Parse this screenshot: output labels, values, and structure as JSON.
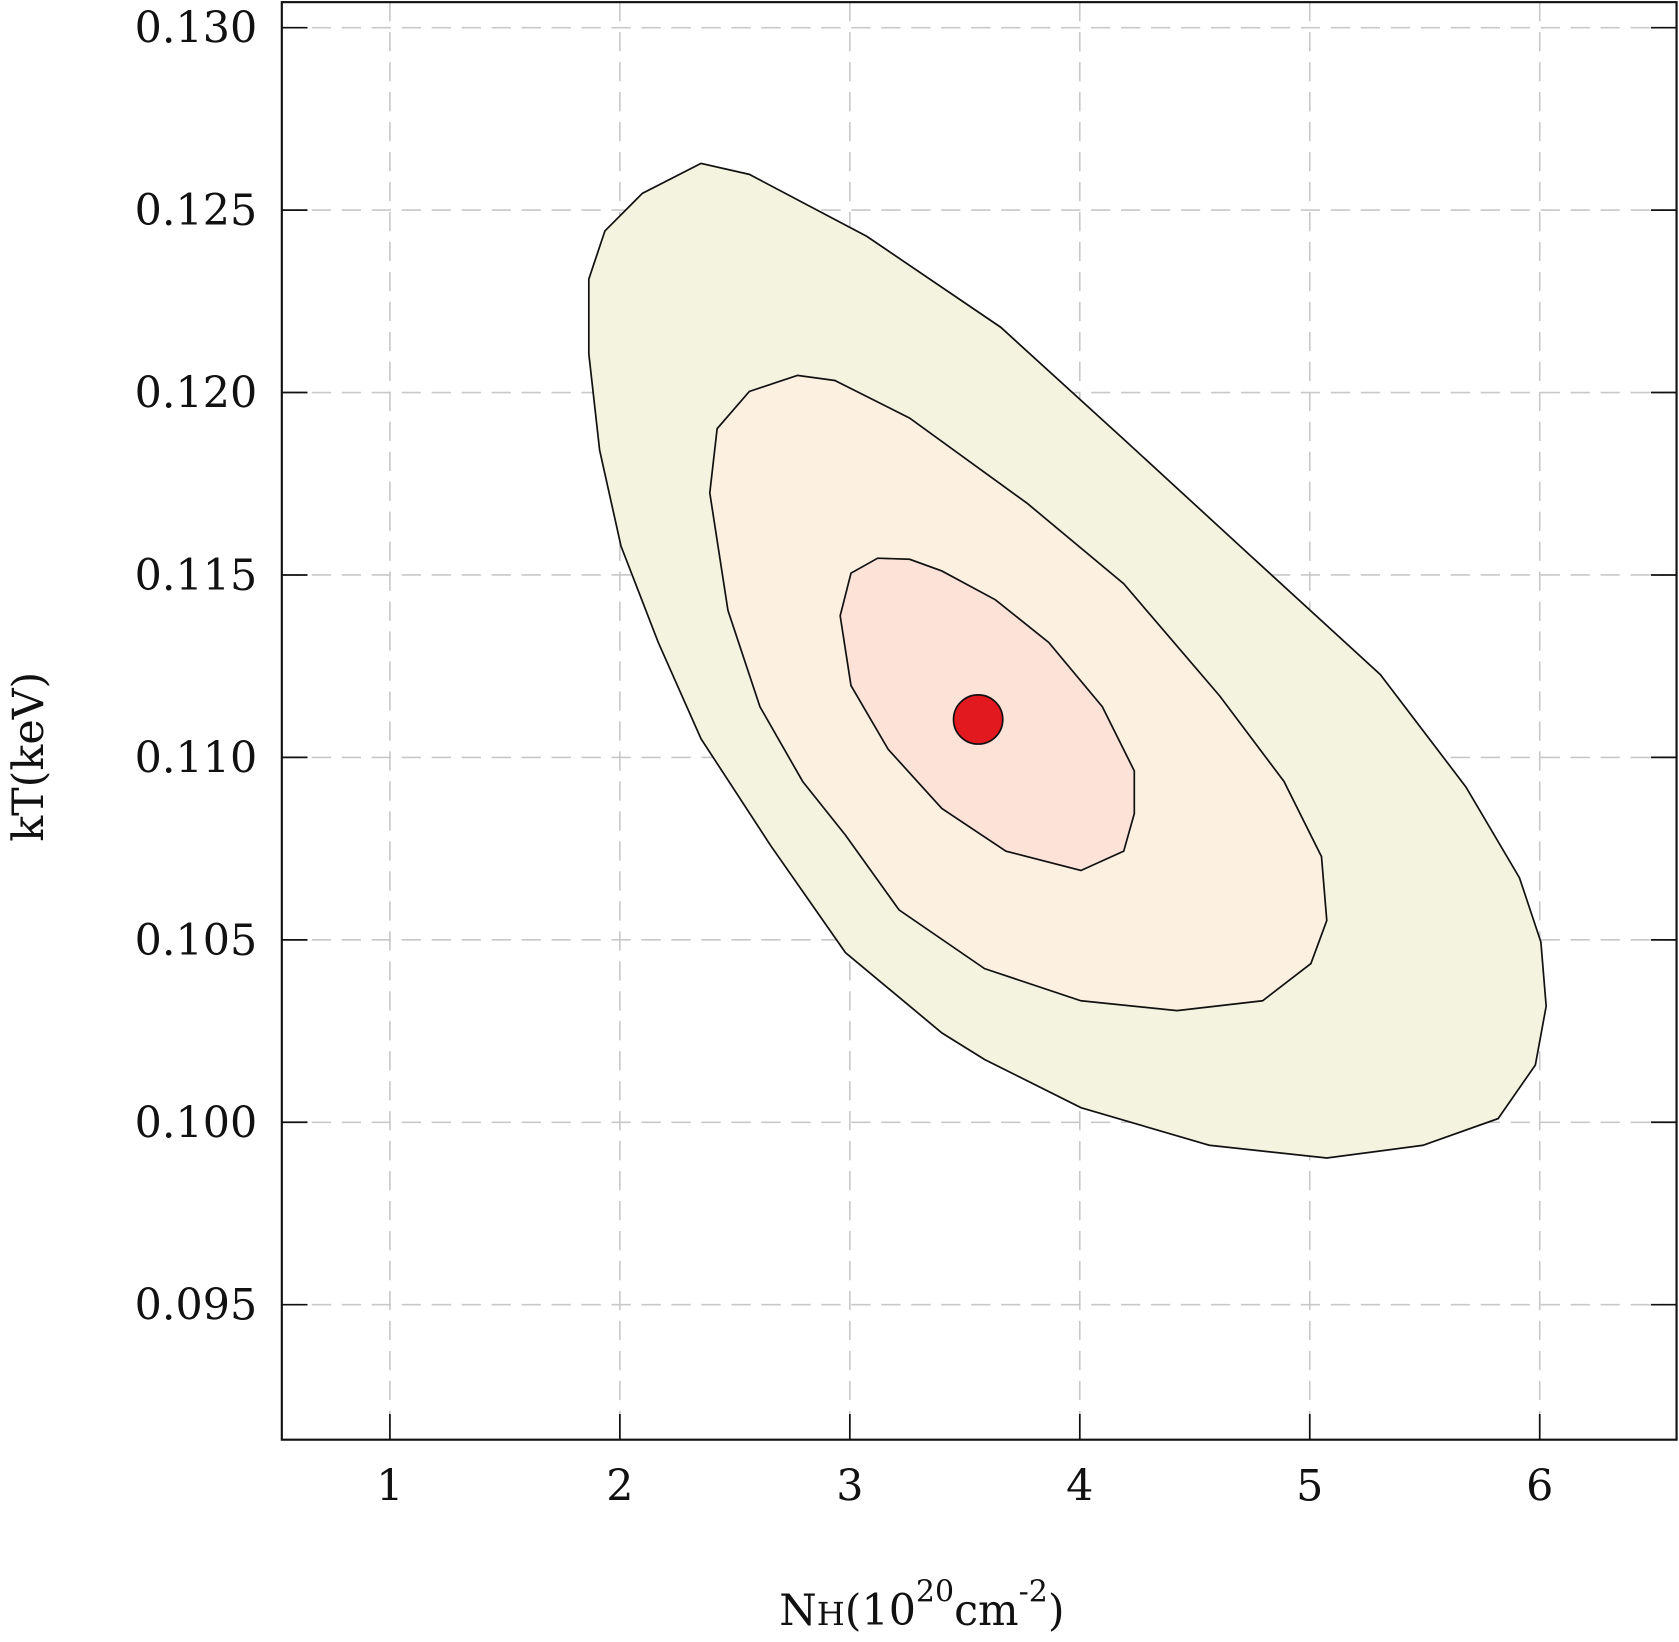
{
  "chart_data": {
    "type": "contour",
    "xlabel": {
      "base": "N",
      "sub": "H",
      "open": "(10",
      "exp1": "20",
      "unit": "cm",
      "exp2": "-2",
      "close": ")"
    },
    "ylabel": "kT(keV)",
    "xlim": [
      0.53,
      6.595
    ],
    "ylim": [
      0.0913,
      0.1307
    ],
    "xticks": [
      1,
      2,
      3,
      4,
      5,
      6
    ],
    "yticks": [
      {
        "value": 0.095,
        "label": "0.095"
      },
      {
        "value": 0.1,
        "label": "0.100"
      },
      {
        "value": 0.105,
        "label": "0.105"
      },
      {
        "value": 0.11,
        "label": "0.110"
      },
      {
        "value": 0.115,
        "label": "0.115"
      },
      {
        "value": 0.12,
        "label": "0.120"
      },
      {
        "value": 0.125,
        "label": "0.125"
      },
      {
        "value": 0.13,
        "label": "0.130"
      }
    ],
    "grid": true,
    "series": [
      {
        "color": "#f4f3e0",
        "x": [
          2.353,
          2.098,
          1.935,
          1.865,
          1.865,
          1.912,
          2.005,
          2.167,
          2.353,
          2.656,
          2.981,
          3.4,
          3.586,
          4.005,
          4.563,
          5.074,
          5.493,
          5.819,
          5.981,
          6.028,
          6.005,
          5.912,
          5.679,
          5.307,
          4.749,
          4.191,
          3.656,
          3.074,
          2.563
        ],
        "y": [
          0.12628,
          0.12546,
          0.12443,
          0.12311,
          0.12106,
          0.11842,
          0.11579,
          0.11315,
          0.11051,
          0.10758,
          0.10465,
          0.10245,
          0.10172,
          0.1004,
          0.09937,
          0.09902,
          0.09937,
          0.1001,
          0.10157,
          0.10318,
          0.10494,
          0.1067,
          0.10919,
          0.11227,
          0.11549,
          0.11872,
          0.12179,
          0.12428,
          0.12598
        ]
      },
      {
        "color": "#fcf1e1",
        "x": [
          2.772,
          2.563,
          2.423,
          2.391,
          2.47,
          2.609,
          2.795,
          2.981,
          3.214,
          3.586,
          4.005,
          4.423,
          4.795,
          5.005,
          5.074,
          5.051,
          4.888,
          4.609,
          4.191,
          3.772,
          3.26,
          2.935
        ],
        "y": [
          0.12047,
          0.12003,
          0.11901,
          0.11725,
          0.11403,
          0.11139,
          0.10934,
          0.10787,
          0.10582,
          0.10421,
          0.10333,
          0.10306,
          0.10333,
          0.10435,
          0.10553,
          0.10728,
          0.10934,
          0.11168,
          0.11476,
          0.11696,
          0.1193,
          0.12033
        ]
      },
      {
        "color": "#fde2d8",
        "x": [
          3.121,
          3.005,
          2.958,
          3.005,
          3.167,
          3.4,
          3.679,
          4.005,
          4.191,
          4.237,
          4.237,
          4.098,
          3.865,
          3.633,
          3.4,
          3.26
        ],
        "y": [
          0.11546,
          0.11505,
          0.11388,
          0.11197,
          0.11022,
          0.1086,
          0.10743,
          0.1069,
          0.10743,
          0.10846,
          0.10963,
          0.11139,
          0.11315,
          0.11432,
          0.11511,
          0.11543
        ]
      }
    ],
    "point": {
      "x": 3.558,
      "y": 0.11104,
      "color": "#e2191f"
    }
  }
}
